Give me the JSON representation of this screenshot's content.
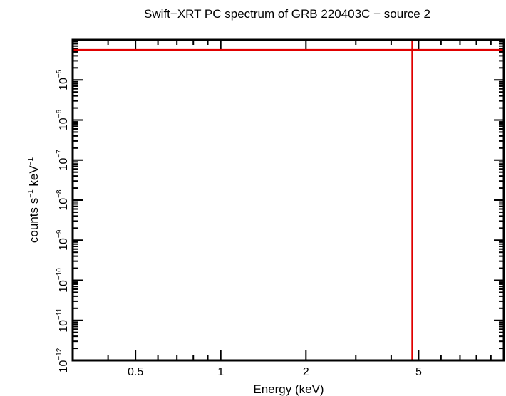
{
  "chart_data": {
    "type": "scatter",
    "title": "Swift−XRT PC spectrum of GRB 220403C − source 2",
    "xlabel": "Energy (keV)",
    "ylabel_parts": [
      "counts s",
      "−1",
      " keV",
      "−1"
    ],
    "x_scale": "log",
    "y_scale": "log",
    "xlim": [
      0.3,
      10
    ],
    "ylim": [
      1e-12,
      0.0001
    ],
    "x_major_ticks": [
      {
        "value": 0.5,
        "label": "0.5"
      },
      {
        "value": 1,
        "label": "1"
      },
      {
        "value": 2,
        "label": "2"
      },
      {
        "value": 5,
        "label": "5"
      }
    ],
    "y_major_ticks": [
      {
        "value": 1e-12,
        "base": "10",
        "exp": "−12"
      },
      {
        "value": 1e-11,
        "base": "10",
        "exp": "−11"
      },
      {
        "value": 1e-10,
        "base": "10",
        "exp": "−10"
      },
      {
        "value": 1e-09,
        "base": "10",
        "exp": "−9"
      },
      {
        "value": 1e-08,
        "base": "10",
        "exp": "−8"
      },
      {
        "value": 1e-07,
        "base": "10",
        "exp": "−7"
      },
      {
        "value": 1e-06,
        "base": "10",
        "exp": "−6"
      },
      {
        "value": 1e-05,
        "base": "10",
        "exp": "−5"
      }
    ],
    "points": [
      {
        "x": 4.75,
        "y": 5.6e-05,
        "x_err": [
          0.3,
          10
        ],
        "y_err": [
          1e-12,
          0.0001
        ]
      }
    ],
    "series_color": "#e00000",
    "grid": false
  }
}
